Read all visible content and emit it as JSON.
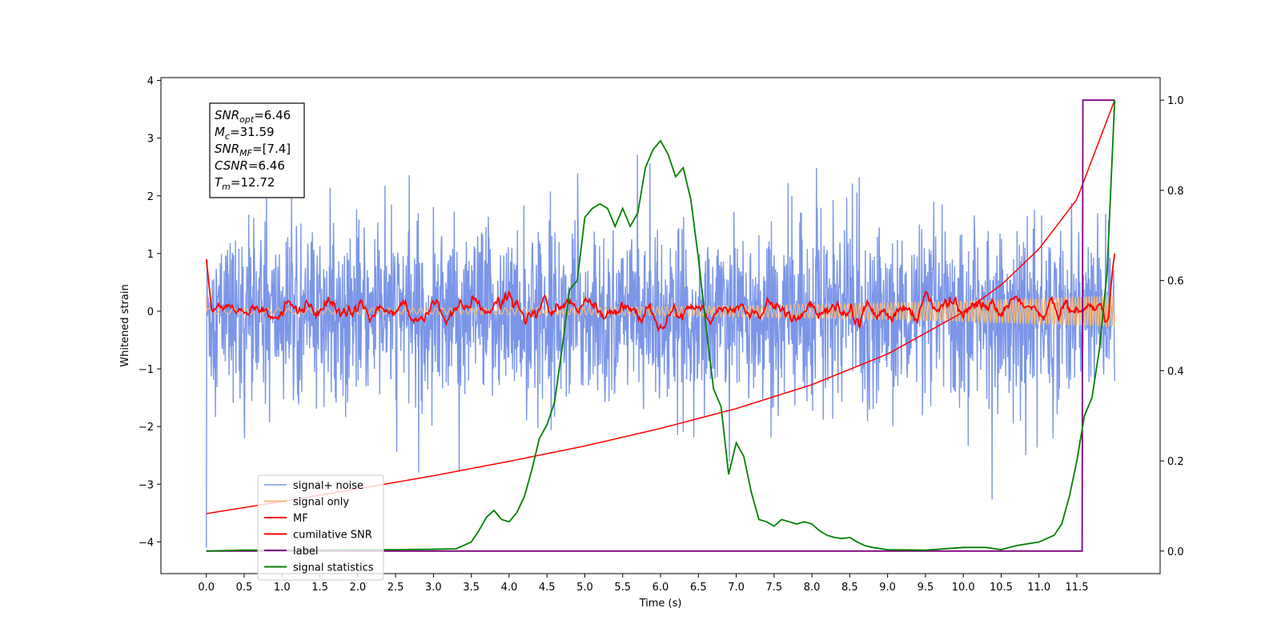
{
  "chart_data": {
    "type": "line",
    "xlabel": "Time (s)",
    "ylabel": "Whitened strain",
    "xlim": [
      -0.6,
      12.6
    ],
    "ylim": [
      -4.55,
      4.05
    ],
    "ylim_right": [
      -0.05,
      1.05
    ],
    "x_ticks": [
      0.0,
      0.5,
      1.0,
      1.5,
      2.0,
      2.5,
      3.0,
      3.5,
      4.0,
      4.5,
      5.0,
      5.5,
      6.0,
      6.5,
      7.0,
      7.5,
      8.0,
      8.5,
      9.0,
      9.5,
      10.0,
      10.5,
      11.0,
      11.5
    ],
    "x_tick_labels": [
      "0.0",
      "0.5",
      "1.0",
      "1.5",
      "2.0",
      "2.5",
      "3.0",
      "3.5",
      "4.0",
      "4.5",
      "5.0",
      "5.5",
      "6.0",
      "6.5",
      "7.0",
      "7.5",
      "8.0",
      "8.5",
      "9.0",
      "9.5",
      "10.0",
      "10.5",
      "11.0",
      "11.5"
    ],
    "y_ticks": [
      4,
      3,
      2,
      1,
      0,
      -1,
      -2,
      -3,
      -4
    ],
    "y_tick_labels": [
      "4",
      "3",
      "2",
      "1",
      "0",
      "−1",
      "−2",
      "−3",
      "−4"
    ],
    "y_right_ticks": [
      1.0,
      0.8,
      0.6,
      0.4,
      0.2,
      0.0
    ],
    "y_right_tick_labels": [
      "1.0",
      "0.8",
      "0.6",
      "0.4",
      "0.2",
      "0.0"
    ],
    "grid": false,
    "legend_position": "lower-left",
    "annotation_lines": [
      {
        "sym": "SNR",
        "sub": "opt",
        "value": "=6.46"
      },
      {
        "sym": "M",
        "sub": "c",
        "value": "=31.59"
      },
      {
        "sym": "SNR",
        "sub": "MF",
        "value": "=[7.4]"
      },
      {
        "sym": "CSNR",
        "sub": "",
        "value": "=6.46"
      },
      {
        "sym": "T",
        "sub": "m",
        "value": "=12.72"
      }
    ],
    "series": [
      {
        "name": "signal+ noise",
        "axis": "left",
        "color": "#7b96e8",
        "approx_std": 0.85,
        "min": -4.1,
        "max": 2.9,
        "x_range": [
          0,
          12.0
        ]
      },
      {
        "name": "signal only",
        "axis": "left",
        "color": "#f5b97a",
        "amplitude_start": 0.05,
        "amplitude_end": 0.28,
        "x_range": [
          0,
          12.0
        ]
      },
      {
        "name": "MF",
        "axis": "left",
        "color": "#ff0000",
        "approx_std": 0.12,
        "start": 0.9,
        "end": 1.0,
        "x_range": [
          0,
          12.0
        ]
      },
      {
        "name": "cumilative SNR",
        "axis": "right",
        "color": "#ff0000",
        "x": [
          0,
          1,
          2,
          3,
          4,
          5,
          6,
          7,
          8,
          9,
          10,
          10.5,
          11,
          11.5,
          12.0
        ],
        "y": [
          0.083,
          0.11,
          0.138,
          0.167,
          0.199,
          0.233,
          0.272,
          0.316,
          0.369,
          0.437,
          0.53,
          0.59,
          0.67,
          0.78,
          1.0
        ]
      },
      {
        "name": "label",
        "axis": "right",
        "color": "#800080",
        "x": [
          0,
          11.57,
          11.58,
          12.0
        ],
        "y": [
          0.0,
          0.0,
          1.0,
          1.0
        ]
      },
      {
        "name": "signal statistics",
        "axis": "right",
        "color": "#008000",
        "x": [
          0,
          0.5,
          1,
          1.5,
          2,
          2.5,
          3,
          3.3,
          3.5,
          3.6,
          3.7,
          3.8,
          3.9,
          4.0,
          4.1,
          4.2,
          4.3,
          4.4,
          4.5,
          4.6,
          4.7,
          4.8,
          4.9,
          5.0,
          5.1,
          5.2,
          5.3,
          5.4,
          5.5,
          5.6,
          5.7,
          5.8,
          5.9,
          6.0,
          6.1,
          6.2,
          6.3,
          6.4,
          6.5,
          6.6,
          6.7,
          6.8,
          6.9,
          7.0,
          7.1,
          7.2,
          7.3,
          7.4,
          7.5,
          7.6,
          7.7,
          7.8,
          7.9,
          8.0,
          8.1,
          8.2,
          8.3,
          8.4,
          8.5,
          8.6,
          8.7,
          8.8,
          9.0,
          9.5,
          10.0,
          10.3,
          10.5,
          10.7,
          11.0,
          11.2,
          11.3,
          11.4,
          11.5,
          11.6,
          11.7,
          11.8,
          11.9,
          12.0
        ],
        "y": [
          0.0,
          0.002,
          0.002,
          0.002,
          0.003,
          0.003,
          0.004,
          0.005,
          0.02,
          0.045,
          0.075,
          0.09,
          0.07,
          0.065,
          0.085,
          0.12,
          0.18,
          0.25,
          0.28,
          0.33,
          0.45,
          0.58,
          0.6,
          0.74,
          0.76,
          0.77,
          0.76,
          0.72,
          0.76,
          0.72,
          0.75,
          0.85,
          0.89,
          0.91,
          0.88,
          0.83,
          0.85,
          0.78,
          0.65,
          0.5,
          0.36,
          0.32,
          0.17,
          0.24,
          0.21,
          0.13,
          0.07,
          0.065,
          0.055,
          0.07,
          0.065,
          0.06,
          0.065,
          0.06,
          0.045,
          0.035,
          0.03,
          0.028,
          0.03,
          0.02,
          0.012,
          0.008,
          0.003,
          0.002,
          0.008,
          0.008,
          0.003,
          0.012,
          0.02,
          0.035,
          0.06,
          0.12,
          0.2,
          0.3,
          0.34,
          0.45,
          0.62,
          1.0
        ]
      }
    ]
  }
}
